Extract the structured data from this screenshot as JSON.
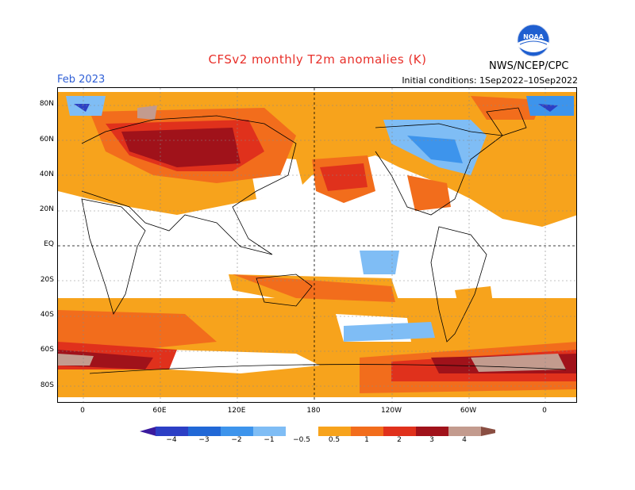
{
  "header": {
    "title": "CFSv2 monthly T2m anomalies (K)",
    "month": "Feb 2023",
    "initial_conditions": "Initial conditions: 1Sep2022–10Sep2022",
    "agency": "NWS/NCEP/CPC",
    "logo_text": "NOAA"
  },
  "axes": {
    "lat_labels": [
      "80N",
      "60N",
      "40N",
      "20N",
      "EQ",
      "20S",
      "40S",
      "60S",
      "80S"
    ],
    "lon_labels": [
      "0",
      "60E",
      "120E",
      "180",
      "120W",
      "60W",
      "0"
    ]
  },
  "colorbar": {
    "labels": [
      "−4",
      "−3",
      "−2",
      "−1",
      "−0.5",
      "0.5",
      "1",
      "2",
      "3",
      "4"
    ],
    "colors": {
      "lt_neg4": "#3a1a9e",
      "neg4_neg3": "#2c3fc5",
      "neg3_neg2": "#2168d6",
      "neg2_neg1": "#3d94ec",
      "neg1_neg05": "#7fbdf5",
      "neutral": "#ffffff",
      "p05_1": "#f7a31c",
      "p1_2": "#f26d1c",
      "p2_3": "#e0311c",
      "p3_4": "#a0121a",
      "p4_plus": "#c39b8e",
      "gt_4": "#8a4e42"
    }
  }
}
